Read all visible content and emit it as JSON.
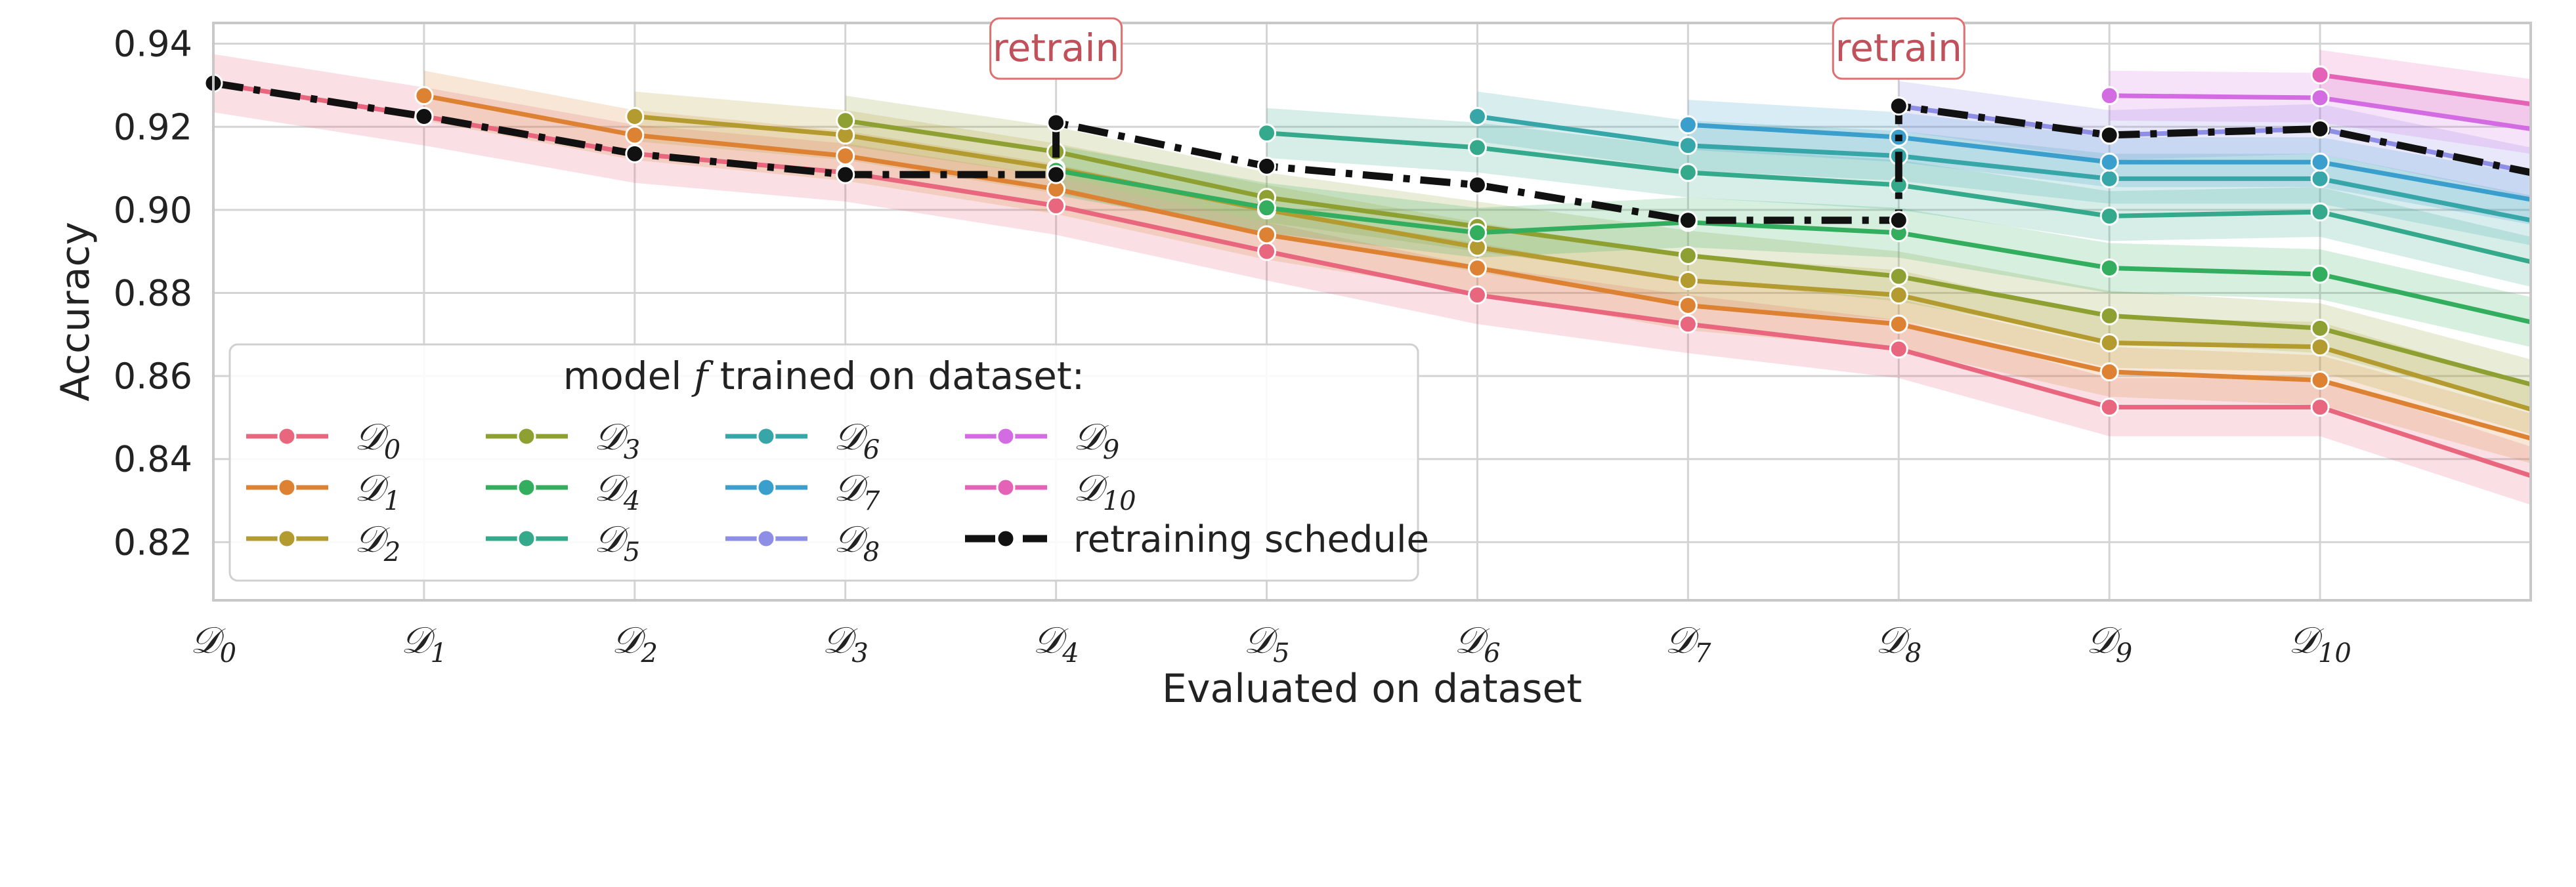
{
  "chart_data": {
    "type": "line",
    "xlabel": "Evaluated on dataset",
    "ylabel": "Accuracy",
    "ylim": [
      0.806,
      0.945
    ],
    "yticks": [
      "0.82",
      "0.84",
      "0.86",
      "0.88",
      "0.90",
      "0.92",
      "0.94"
    ],
    "ytick_values": [
      0.82,
      0.84,
      0.86,
      0.88,
      0.9,
      0.92,
      0.94
    ],
    "xlim": [
      0,
      11
    ],
    "categories": [
      "𝒟0",
      "𝒟1",
      "𝒟2",
      "𝒟3",
      "𝒟4",
      "𝒟5",
      "𝒟6",
      "𝒟7",
      "𝒟8",
      "𝒟9",
      "𝒟10"
    ],
    "category_script": "𝒟",
    "category_subscripts": [
      "0",
      "1",
      "2",
      "3",
      "4",
      "5",
      "6",
      "7",
      "8",
      "9",
      "10"
    ],
    "grid": true,
    "legend": {
      "title_parts": [
        "model ",
        "f",
        " trained on dataset:"
      ],
      "placement": "lower-left",
      "columns": 4
    },
    "series": [
      {
        "name": "𝒟0",
        "sub": "0",
        "color": "#e8667e",
        "band": 0.007,
        "points": [
          [
            0,
            0.9305
          ],
          [
            1,
            0.9225
          ],
          [
            2,
            0.9135
          ],
          [
            3,
            0.909
          ],
          [
            4,
            0.901
          ],
          [
            5,
            0.89
          ],
          [
            6,
            0.8795
          ],
          [
            7,
            0.8725
          ],
          [
            8,
            0.8665
          ],
          [
            9,
            0.8525
          ],
          [
            10,
            0.8525
          ],
          [
            11,
            0.836
          ]
        ]
      },
      {
        "name": "𝒟1",
        "sub": "1",
        "color": "#dd8233",
        "band": 0.006,
        "points": [
          [
            1,
            0.9275
          ],
          [
            2,
            0.918
          ],
          [
            3,
            0.913
          ],
          [
            4,
            0.905
          ],
          [
            5,
            0.894
          ],
          [
            6,
            0.886
          ],
          [
            7,
            0.877
          ],
          [
            8,
            0.8725
          ],
          [
            9,
            0.861
          ],
          [
            10,
            0.859
          ],
          [
            11,
            0.845
          ]
        ]
      },
      {
        "name": "𝒟2",
        "sub": "2",
        "color": "#b39b2f",
        "band": 0.006,
        "points": [
          [
            2,
            0.9225
          ],
          [
            3,
            0.918
          ],
          [
            4,
            0.91
          ],
          [
            5,
            0.9
          ],
          [
            6,
            0.891
          ],
          [
            7,
            0.883
          ],
          [
            8,
            0.8795
          ],
          [
            9,
            0.868
          ],
          [
            10,
            0.867
          ],
          [
            11,
            0.852
          ]
        ]
      },
      {
        "name": "𝒟3",
        "sub": "3",
        "color": "#8fa032",
        "band": 0.006,
        "points": [
          [
            3,
            0.9215
          ],
          [
            4,
            0.914
          ],
          [
            5,
            0.903
          ],
          [
            6,
            0.896
          ],
          [
            7,
            0.889
          ],
          [
            8,
            0.884
          ],
          [
            9,
            0.8745
          ],
          [
            10,
            0.8715
          ],
          [
            11,
            0.858
          ]
        ]
      },
      {
        "name": "𝒟4",
        "sub": "4",
        "color": "#33ad5e",
        "band": 0.006,
        "points": [
          [
            4,
            0.9095
          ],
          [
            5,
            0.9005
          ],
          [
            6,
            0.8945
          ],
          [
            7,
            0.897
          ],
          [
            8,
            0.8945
          ],
          [
            9,
            0.886
          ],
          [
            10,
            0.8845
          ],
          [
            11,
            0.873
          ]
        ]
      },
      {
        "name": "𝒟5",
        "sub": "5",
        "color": "#35a98c",
        "band": 0.006,
        "points": [
          [
            5,
            0.9185
          ],
          [
            6,
            0.915
          ],
          [
            7,
            0.909
          ],
          [
            8,
            0.906
          ],
          [
            9,
            0.8985
          ],
          [
            10,
            0.8995
          ],
          [
            11,
            0.8875
          ]
        ]
      },
      {
        "name": "𝒟6",
        "sub": "6",
        "color": "#36a6a8",
        "band": 0.006,
        "points": [
          [
            6,
            0.9225
          ],
          [
            7,
            0.9155
          ],
          [
            8,
            0.913
          ],
          [
            9,
            0.9075
          ],
          [
            10,
            0.9075
          ],
          [
            11,
            0.8975
          ]
        ]
      },
      {
        "name": "𝒟7",
        "sub": "7",
        "color": "#3a9fcd",
        "band": 0.006,
        "points": [
          [
            7,
            0.9205
          ],
          [
            8,
            0.9175
          ],
          [
            9,
            0.9115
          ],
          [
            10,
            0.9115
          ],
          [
            11,
            0.9025
          ]
        ]
      },
      {
        "name": "𝒟8",
        "sub": "8",
        "color": "#8e8ee6",
        "band": 0.006,
        "points": [
          [
            8,
            0.925
          ],
          [
            9,
            0.918
          ],
          [
            10,
            0.9195
          ],
          [
            11,
            0.909
          ]
        ]
      },
      {
        "name": "𝒟9",
        "sub": "9",
        "color": "#d36ce2",
        "band": 0.006,
        "points": [
          [
            9,
            0.9275
          ],
          [
            10,
            0.927
          ],
          [
            11,
            0.9195
          ]
        ]
      },
      {
        "name": "𝒟10",
        "sub": "10",
        "color": "#e463b6",
        "band": 0.006,
        "points": [
          [
            10,
            0.9325
          ],
          [
            11,
            0.9255
          ]
        ]
      }
    ],
    "schedule": {
      "name": "retraining schedule",
      "color": "#111111",
      "points": [
        [
          0,
          0.9305
        ],
        [
          1,
          0.9225
        ],
        [
          2,
          0.9135
        ],
        [
          3,
          0.9085
        ],
        [
          4,
          0.9085
        ],
        [
          4,
          0.921
        ],
        [
          5,
          0.9105
        ],
        [
          6,
          0.906
        ],
        [
          7,
          0.8975
        ],
        [
          8,
          0.8975
        ],
        [
          8,
          0.925
        ],
        [
          9,
          0.918
        ],
        [
          10,
          0.9195
        ],
        [
          11,
          0.909
        ]
      ]
    },
    "annotations": [
      {
        "text": "retrain",
        "x": 4,
        "color": "#c0505a",
        "border": "#e07070"
      },
      {
        "text": "retrain",
        "x": 8,
        "color": "#c0505a",
        "border": "#e07070"
      }
    ]
  }
}
